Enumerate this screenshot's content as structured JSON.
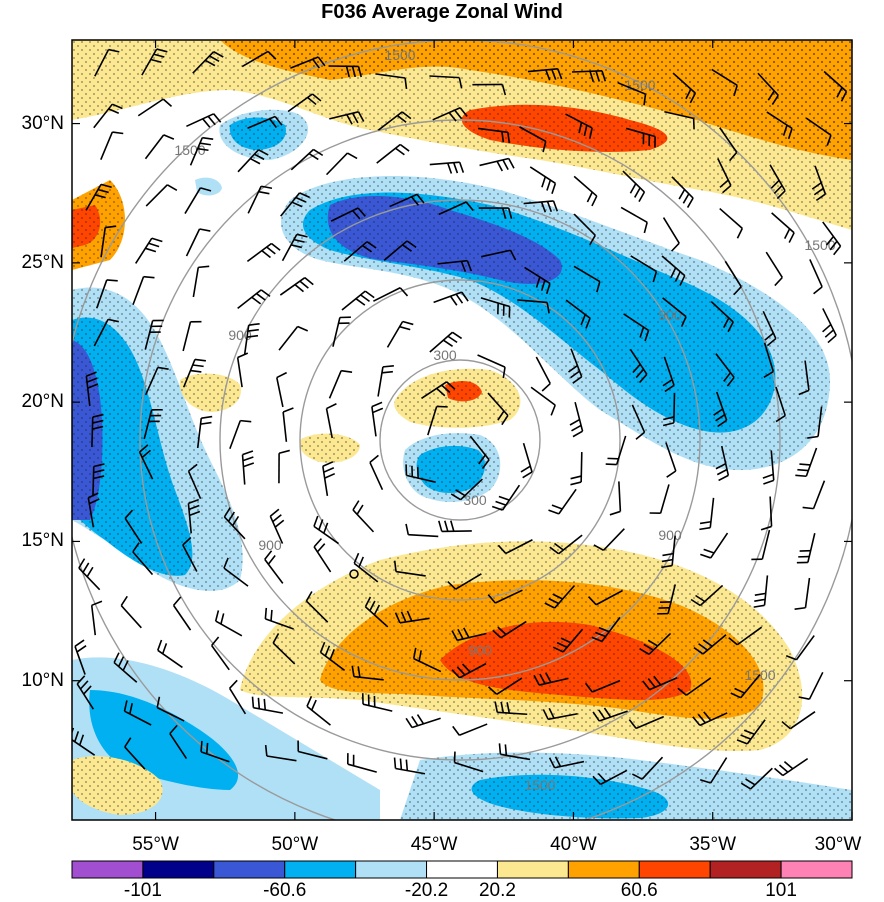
{
  "title": "F036 Average Zonal Wind",
  "map": {
    "lon_range": [
      -58,
      -30
    ],
    "lat_range": [
      5,
      33
    ],
    "lat_ticks": [
      {
        "label": "30°N",
        "lat": 30
      },
      {
        "label": "25°N",
        "lat": 25
      },
      {
        "label": "20°N",
        "lat": 20
      },
      {
        "label": "15°N",
        "lat": 15
      },
      {
        "label": "10°N",
        "lat": 10
      }
    ],
    "lon_ticks": [
      {
        "label": "55°W",
        "lon": -55
      },
      {
        "label": "50°W",
        "lon": -50
      },
      {
        "label": "45°W",
        "lon": -45
      },
      {
        "label": "40°W",
        "lon": -40
      },
      {
        "label": "35°W",
        "lon": -35
      },
      {
        "label": "30°W",
        "lon": -30
      }
    ],
    "range_rings": [
      "300",
      "900",
      "1500"
    ],
    "range_ring_labels": [
      "300",
      "300",
      "900",
      "900",
      "900",
      "900",
      "900",
      "1500",
      "1500",
      "1500",
      "1500",
      "1500",
      "1500"
    ],
    "hatching": "stippled",
    "vectors": "wind barbs"
  },
  "colorbar": {
    "colors": [
      "#a14fd0",
      "#00008b",
      "#3a58d6",
      "#00b0f0",
      "#b0e0f6",
      "#ffffff",
      "#fce891",
      "#ffa200",
      "#ff4500",
      "#b22222",
      "#ff82b4"
    ],
    "labels": [
      "-101",
      "-60.6",
      "-20.2",
      "20.2",
      "60.6",
      "101"
    ]
  }
}
